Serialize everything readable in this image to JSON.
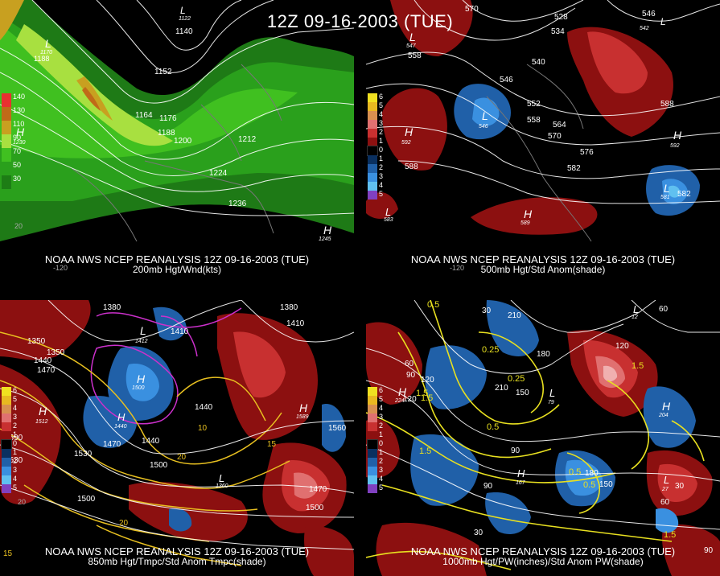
{
  "header": {
    "title": "12Z 09-16-2003 (TUE)"
  },
  "panels": [
    {
      "id": "200mb",
      "caption_line1": "NOAA NWS NCEP REANALYSIS 12Z 09-16-2003 (TUE)",
      "caption_line2": "200mb Hgt/Wnd(kts)",
      "legend": [
        "140",
        "130",
        "110",
        "90",
        "70",
        "50",
        "30"
      ],
      "legend_colors": [
        "#e83030",
        "#c06a18",
        "#c8a020",
        "#a8e040",
        "#40c020",
        "#2aa01c",
        "#1d7d15"
      ],
      "contour_labels": [
        "1140",
        "1188",
        "1152",
        "1164",
        "1176",
        "1188",
        "1200",
        "1212",
        "1224",
        "1236"
      ],
      "centers": [
        {
          "type": "H",
          "value": "1230"
        },
        {
          "type": "L",
          "value": "1170"
        },
        {
          "type": "H",
          "value": "1245"
        },
        {
          "type": "L",
          "value": "1122"
        }
      ],
      "edge_labels": [
        "-120",
        "20"
      ]
    },
    {
      "id": "500mb",
      "caption_line1": "NOAA NWS NCEP REANALYSIS 12Z 09-16-2003 (TUE)",
      "caption_line2": "500mb Hgt/Std Anom(shade)",
      "legend": [
        "6",
        "5",
        "4",
        "3",
        "2",
        "1",
        "0",
        "1",
        "2",
        "3",
        "4",
        "5"
      ],
      "legend_colors": [
        "#f0e020",
        "#e8b820",
        "#d89050",
        "#e07070",
        "#c83030",
        "#8c1010",
        "#000000",
        "#0a3060",
        "#2060a8",
        "#3a90e0",
        "#60c0f0",
        "#8040c0"
      ],
      "contour_labels": [
        "570",
        "528",
        "534",
        "546",
        "540",
        "546",
        "552",
        "558",
        "564",
        "570",
        "576",
        "582",
        "588",
        "588",
        "582",
        "558"
      ],
      "centers": [
        {
          "type": "L",
          "value": "547"
        },
        {
          "type": "L",
          "value": "546"
        },
        {
          "type": "H",
          "value": "592"
        },
        {
          "type": "H",
          "value": "592"
        },
        {
          "type": "L",
          "value": "581"
        },
        {
          "type": "H",
          "value": "589"
        },
        {
          "type": "L",
          "value": "583"
        },
        {
          "type": "L",
          "value": "542"
        }
      ],
      "edge_labels": [
        "-120"
      ]
    },
    {
      "id": "850mb",
      "caption_line1": "NOAA NWS NCEP REANALYSIS 12Z 09-16-2003 (TUE)",
      "caption_line2": "850mb Hgt/Tmpc/Std Anom Tmpc(shade)",
      "legend": [
        "6",
        "5",
        "4",
        "3",
        "2",
        "1",
        "0",
        "1",
        "2",
        "3",
        "4",
        "5"
      ],
      "legend_colors": [
        "#f0e020",
        "#e8b820",
        "#d89050",
        "#e07070",
        "#c83030",
        "#8c1010",
        "#000000",
        "#0a3060",
        "#2060a8",
        "#3a90e0",
        "#60c0f0",
        "#8040c0"
      ],
      "contour_labels": [
        "1350",
        "1380",
        "1440",
        "1470",
        "1410",
        "1410",
        "1440",
        "1380",
        "1500",
        "1530",
        "1470",
        "1440",
        "1560",
        "1500",
        "1530",
        "1590",
        "1500",
        "1470",
        "1350"
      ],
      "temp_labels": [
        "10",
        "15",
        "20",
        "20",
        "15"
      ],
      "centers": [
        {
          "type": "H",
          "value": "1512"
        },
        {
          "type": "L",
          "value": "1500"
        },
        {
          "type": "H",
          "value": "1589"
        },
        {
          "type": "L",
          "value": "1412"
        },
        {
          "type": "L",
          "value": "1360"
        },
        {
          "type": "H",
          "value": "1440"
        }
      ],
      "edge_labels": [
        "20"
      ]
    },
    {
      "id": "1000mb",
      "caption_line1": "NOAA NWS NCEP REANALYSIS 12Z 09-16-2003 (TUE)",
      "caption_line2": "1000mb Hgt/PW(inches)/Std Anom PW(shade)",
      "legend": [
        "6",
        "5",
        "4",
        "3",
        "2",
        "1",
        "0",
        "1",
        "2",
        "3",
        "4",
        "5"
      ],
      "legend_colors": [
        "#f0e020",
        "#e8b820",
        "#d89050",
        "#e07070",
        "#c83030",
        "#8c1010",
        "#000000",
        "#0a3060",
        "#2060a8",
        "#3a90e0",
        "#60c0f0",
        "#8040c0"
      ],
      "contour_labels": [
        "60",
        "30",
        "210",
        "120",
        "60",
        "90",
        "120",
        "180",
        "210",
        "150",
        "180",
        "90",
        "30",
        "60",
        "90",
        "150",
        "30",
        "120"
      ],
      "pw_labels": [
        "0.5",
        "0.25",
        "0.5",
        "1.5",
        "0.25",
        "1.5",
        "1.5",
        "0.5",
        "1.5",
        "0.5",
        "1.5"
      ],
      "centers": [
        {
          "type": "H",
          "value": "224"
        },
        {
          "type": "L",
          "value": "79"
        },
        {
          "type": "H",
          "value": "204"
        },
        {
          "type": "L",
          "value": "27"
        },
        {
          "type": "H",
          "value": "167"
        },
        {
          "type": "L",
          "value": "12"
        }
      ],
      "edge_labels": [
        "90"
      ]
    }
  ]
}
